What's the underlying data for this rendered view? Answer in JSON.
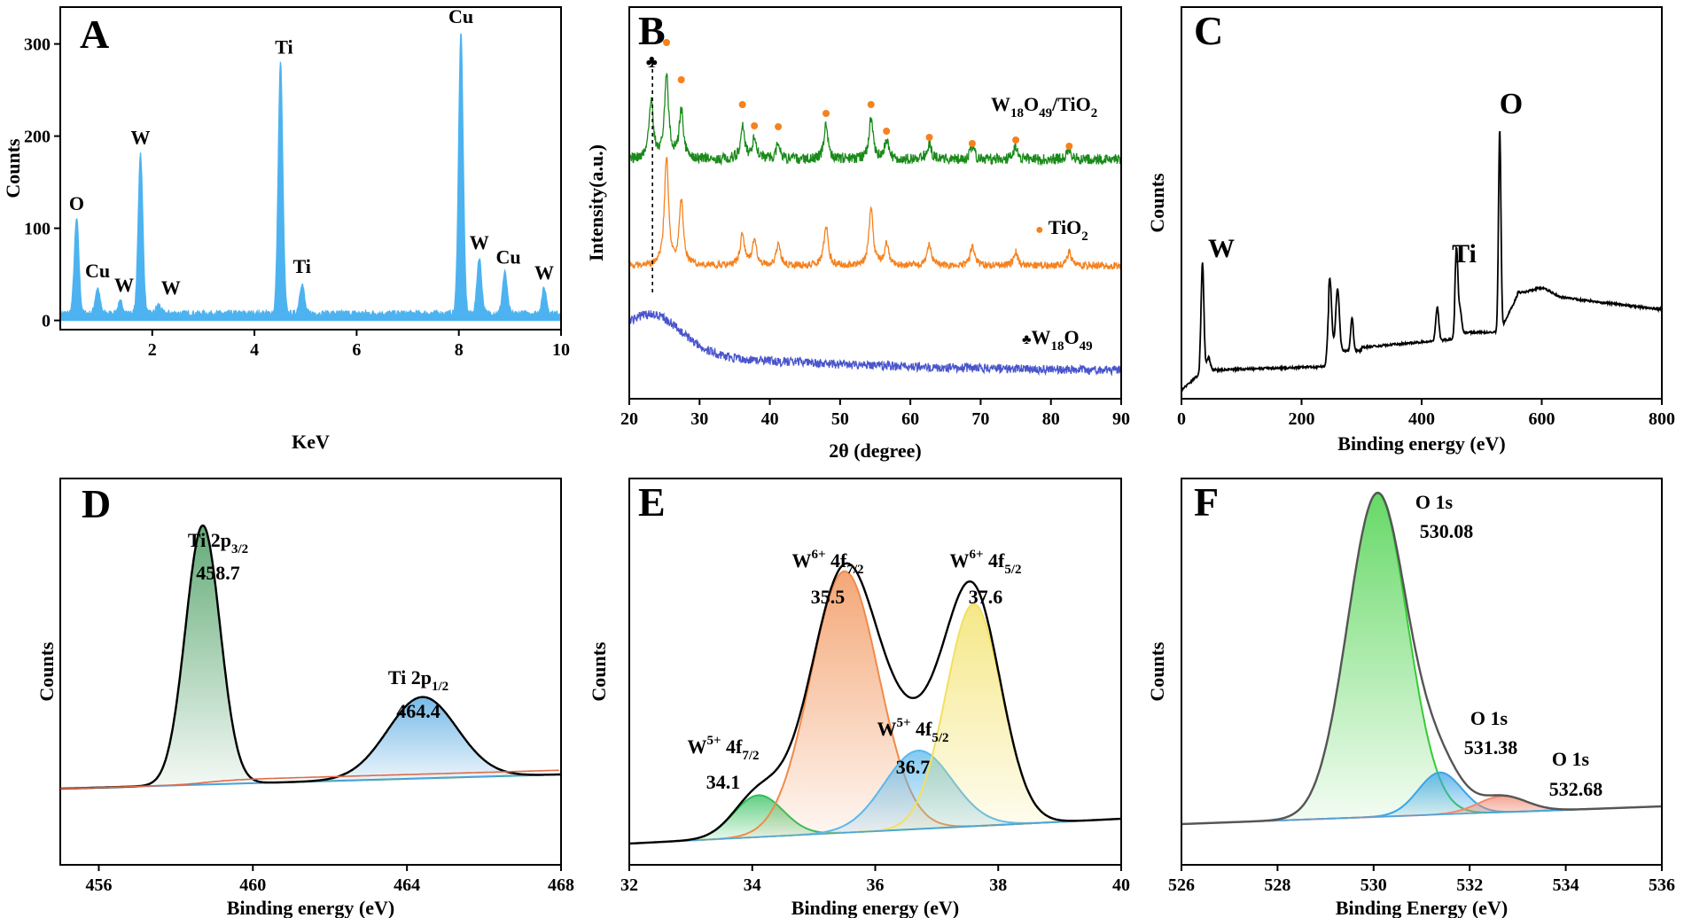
{
  "chart_data": [
    {
      "panel": "A",
      "type": "line",
      "xlabel": "KeV",
      "ylabel": "Counts",
      "xlim": [
        0.2,
        10
      ],
      "ylim": [
        -10,
        340
      ],
      "xticks": [
        2,
        4,
        6,
        8,
        10
      ],
      "yticks": [
        0,
        100,
        200,
        300
      ],
      "baseline": 8,
      "peaks": [
        {
          "x": 0.52,
          "y": 110,
          "label": "O"
        },
        {
          "x": 0.93,
          "y": 35,
          "label": "Cu"
        },
        {
          "x": 1.38,
          "y": 20,
          "label": "W"
        },
        {
          "x": 1.77,
          "y": 182,
          "label": "W"
        },
        {
          "x": 2.12,
          "y": 17,
          "label": "W"
        },
        {
          "x": 4.51,
          "y": 280,
          "label": "Ti"
        },
        {
          "x": 4.93,
          "y": 40,
          "label": "Ti"
        },
        {
          "x": 8.04,
          "y": 313,
          "label": "Cu"
        },
        {
          "x": 8.4,
          "y": 68,
          "label": "W"
        },
        {
          "x": 8.9,
          "y": 52,
          "label": "Cu"
        },
        {
          "x": 9.67,
          "y": 35,
          "label": "W"
        }
      ],
      "fill": "#4db3f0"
    },
    {
      "panel": "B",
      "type": "line",
      "xlabel": "2θ (degree)",
      "ylabel": "Intensity(a.u.)",
      "xlim": [
        20,
        90
      ],
      "xticks": [
        20,
        30,
        40,
        50,
        60,
        70,
        80,
        90
      ],
      "series": [
        {
          "name": "W18O49/TiO2",
          "color": "#1a8a1a",
          "peaks": [
            [
              23.1,
              0.55
            ],
            [
              25.3,
              0.8
            ],
            [
              27.4,
              0.45
            ],
            [
              36.1,
              0.3
            ],
            [
              37.8,
              0.2
            ],
            [
              41.2,
              0.15
            ],
            [
              48.0,
              0.32
            ],
            [
              54.4,
              0.38
            ],
            [
              56.6,
              0.18
            ],
            [
              62.7,
              0.15
            ],
            [
              68.8,
              0.13
            ],
            [
              75.0,
              0.12
            ],
            [
              82.6,
              0.1
            ]
          ]
        },
        {
          "name": "TiO2",
          "color": "#f5821f",
          "peaks": [
            [
              25.3,
              0.95
            ],
            [
              27.4,
              0.55
            ],
            [
              36.1,
              0.28
            ],
            [
              37.8,
              0.22
            ],
            [
              41.2,
              0.18
            ],
            [
              48.0,
              0.35
            ],
            [
              54.4,
              0.5
            ],
            [
              56.6,
              0.2
            ],
            [
              62.7,
              0.18
            ],
            [
              68.8,
              0.17
            ],
            [
              75.0,
              0.12
            ],
            [
              82.6,
              0.12
            ]
          ]
        },
        {
          "name": "W18O49",
          "color": "#4a55cc",
          "broad_hump_center": 23.3
        }
      ],
      "marker_rutile": "●",
      "marker_w": "♣",
      "legend": {
        "composite": {
          "prefix": "W",
          "sub1": "18",
          "mid": "O",
          "sub2": "49",
          "suffix": "/TiO",
          "sub3": "2"
        },
        "tio2": {
          "marker": "●",
          "main": "TiO",
          "sub": "2"
        },
        "w18o49": {
          "marker": "♣",
          "main": "W",
          "sub1": "18",
          "mid": "O",
          "sub2": "49"
        }
      },
      "dot_positions_deg": [
        25.3,
        27.4,
        36.1,
        37.8,
        41.2,
        48.0,
        54.4,
        56.6,
        62.7,
        68.8,
        75.0,
        82.6
      ],
      "dashed_line_at": 23.3
    },
    {
      "panel": "C",
      "type": "line",
      "xlabel": "Binding energy (eV)",
      "ylabel": "Counts",
      "xlim": [
        0,
        800
      ],
      "xticks": [
        0,
        200,
        400,
        600,
        800
      ],
      "labels": [
        {
          "x": 35,
          "text": "W"
        },
        {
          "x": 458,
          "text": "Ti"
        },
        {
          "x": 530,
          "text": "O"
        }
      ]
    },
    {
      "panel": "D",
      "type": "line",
      "xlabel": "Binding energy (eV)",
      "ylabel": "Counts",
      "xlim": [
        455,
        468
      ],
      "xticks": [
        456,
        460,
        464,
        468
      ],
      "peaks": [
        {
          "center": 458.7,
          "height": 0.86,
          "width": 0.45,
          "color": "#2f8f4a",
          "fill": "#2f8f4a",
          "label_main": "Ti 2p",
          "label_sub": "3/2",
          "value": "458.7"
        },
        {
          "center": 464.4,
          "height": 0.27,
          "width": 0.9,
          "color": "#4aa3df",
          "fill": "#4aa3df",
          "label_main": "Ti 2p",
          "label_sub": "1/2",
          "value": "464.4"
        }
      ]
    },
    {
      "panel": "E",
      "type": "line",
      "xlabel": "Binding energy (eV)",
      "ylabel": "Counts",
      "xlim": [
        32,
        40
      ],
      "xticks": [
        32,
        34,
        36,
        38,
        40
      ],
      "peaks": [
        {
          "center": 34.1,
          "height": 0.16,
          "width": 0.4,
          "color": "#2fbf5a",
          "label_pre": "W",
          "label_sup": "5+",
          "label_post": " 4f",
          "label_sub": "7/2",
          "value": "34.1"
        },
        {
          "center": 35.5,
          "height": 1.0,
          "width": 0.55,
          "color": "#f08a4a",
          "label_pre": "W",
          "label_sup": "6+",
          "label_post": " 4f",
          "label_sub": "7/2",
          "value": "35.5"
        },
        {
          "center": 36.7,
          "height": 0.3,
          "width": 0.55,
          "color": "#5ab8ec",
          "label_pre": "W",
          "label_sup": "5+",
          "label_post": " 4f",
          "label_sub": "5/2",
          "value": "36.7"
        },
        {
          "center": 37.6,
          "height": 0.85,
          "width": 0.45,
          "color": "#f2e060",
          "label_pre": "W",
          "label_sup": "6+",
          "label_post": " 4f",
          "label_sub": "5/2",
          "value": "37.6"
        }
      ]
    },
    {
      "panel": "F",
      "type": "line",
      "xlabel": "Binding Energy (eV)",
      "ylabel": "Counts",
      "xlim": [
        526,
        536
      ],
      "xticks": [
        526,
        528,
        530,
        532,
        534,
        536
      ],
      "peaks": [
        {
          "center": 530.08,
          "height": 1.0,
          "width": 0.62,
          "color": "#33cc33",
          "label": "O 1s",
          "value": "530.08"
        },
        {
          "center": 531.38,
          "height": 0.13,
          "width": 0.45,
          "color": "#3ba4e6",
          "label": "O 1s",
          "value": "531.38"
        },
        {
          "center": 532.68,
          "height": 0.05,
          "width": 0.5,
          "color": "#f08a70",
          "label": "O 1s",
          "value": "532.68"
        }
      ]
    }
  ],
  "colors": {
    "axis": "#000000",
    "eds_fill": "#4db3f0",
    "xrd_green": "#1a8a1a",
    "xrd_orange": "#f5821f",
    "xrd_blue": "#4a55cc"
  }
}
